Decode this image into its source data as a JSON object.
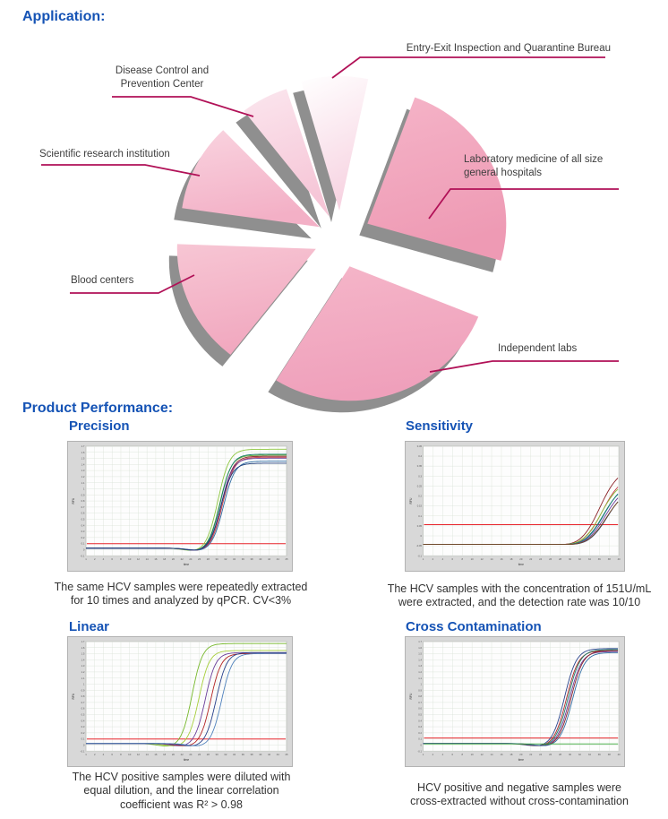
{
  "page": {
    "application_heading": "Application:",
    "performance_heading": "Product Performance:"
  },
  "colors": {
    "heading_blue": "#1553b5",
    "leader_crimson": "#b11157",
    "pie_pink": "#f0a3bd",
    "pie_side_gray": "#8f8f8f",
    "threshold_red": "#e8262d",
    "chart_frame_gray": "#d8d8d8",
    "grid_green_gray": "#d9e2d6",
    "label_text": "#3d3d3d"
  },
  "chart_data": [
    {
      "type": "pie",
      "name": "application-sectors-pie",
      "legend_position": "callout-labels",
      "segments": [
        {
          "label": "Entry-Exit Inspection and Quarantine Bureau",
          "value": 8
        },
        {
          "label": "Laboratory medicine of all size general hospitals",
          "value": 26
        },
        {
          "label": "Independent labs",
          "value": 26
        },
        {
          "label": "Blood centers",
          "value": 14
        },
        {
          "label": "Scientific research institution",
          "value": 15
        },
        {
          "label": "Disease Control and Prevention Center",
          "value": 11
        }
      ]
    },
    {
      "type": "line",
      "title": "Precision",
      "xlabel": "time",
      "ylabel": "RFU",
      "x_range": [
        1,
        45
      ],
      "k": 1.25,
      "threshold": 0.06,
      "x_ticks": [
        "1",
        "2",
        "4",
        "6",
        "8",
        "10",
        "12",
        "14",
        "16",
        "18",
        "20",
        "22",
        "24",
        "26",
        "28",
        "30",
        "32",
        "34",
        "36",
        "38",
        "40",
        "42",
        "44",
        "45"
      ],
      "y_ticks": [
        "1.7",
        "1.6",
        "1.5",
        "1.4",
        "1.3",
        "1.2",
        "1.1",
        "1",
        "0.9",
        "0.8",
        "0.7",
        "0.6",
        "0.5",
        "0.4",
        "0.3",
        "0.2",
        "0.1",
        "0",
        "-0.1"
      ],
      "series": [
        {
          "color": "#8dc63f",
          "ct": 30.0,
          "amp": 0.99
        },
        {
          "color": "#5aa02c",
          "ct": 30.4,
          "amp": 0.93
        },
        {
          "color": "#17806d",
          "ct": 30.5,
          "amp": 0.94
        },
        {
          "color": "#8a1f24",
          "ct": 30.8,
          "amp": 0.92
        },
        {
          "color": "#c43a43",
          "ct": 31.0,
          "amp": 0.91
        },
        {
          "color": "#6a3d9a",
          "ct": 30.7,
          "amp": 0.9
        },
        {
          "color": "#2e6da4",
          "ct": 31.2,
          "amp": 0.87
        },
        {
          "color": "#1f3d7a",
          "ct": 30.6,
          "amp": 0.85
        }
      ],
      "caption_l1": "The same HCV samples were repeatedly extracted",
      "caption_l2": "for 10 times and analyzed by qPCR. CV<3%"
    },
    {
      "type": "line",
      "title": "Sensitivity",
      "xlabel": "time",
      "ylabel": "RFU",
      "x_range": [
        1,
        40
      ],
      "k": 1.9,
      "threshold": 0.22,
      "x_ticks": [
        "1",
        "2",
        "4",
        "6",
        "8",
        "10",
        "12",
        "14",
        "16",
        "18",
        "20",
        "22",
        "24",
        "26",
        "28",
        "30",
        "32",
        "34",
        "36",
        "38",
        "40"
      ],
      "y_ticks": [
        "0.45",
        "0.4",
        "0.35",
        "0.3",
        "0.25",
        "0.2",
        "0.15",
        "0.1",
        "0.05",
        "0",
        "-0.05",
        "-0.1"
      ],
      "series": [
        {
          "color": "#8a1f24",
          "ct": 36.3,
          "amp": 0.8
        },
        {
          "color": "#c43a43",
          "ct": 36.8,
          "amp": 0.72
        },
        {
          "color": "#8dc63f",
          "ct": 36.6,
          "amp": 0.68
        },
        {
          "color": "#2e6da4",
          "ct": 37.2,
          "amp": 0.66
        },
        {
          "color": "#17806d",
          "ct": 37.0,
          "amp": 0.64
        },
        {
          "color": "#6a3d9a",
          "ct": 37.4,
          "amp": 0.62
        },
        {
          "color": "#1f3d7a",
          "ct": 37.8,
          "amp": 0.6
        },
        {
          "color": "#7a4b20",
          "ct": 37.6,
          "amp": 0.58
        }
      ],
      "caption_l1": "The HCV samples with the concentration of 151U/mL",
      "caption_l2": "were extracted, and the detection rate was 10/10"
    },
    {
      "type": "line",
      "title": "Linear",
      "xlabel": "time",
      "ylabel": "RFU",
      "x_range": [
        1,
        45
      ],
      "k": 1.15,
      "threshold": 0.06,
      "x_ticks": [
        "1",
        "2",
        "4",
        "6",
        "8",
        "10",
        "12",
        "14",
        "16",
        "18",
        "20",
        "22",
        "24",
        "26",
        "28",
        "30",
        "32",
        "34",
        "36",
        "38",
        "40",
        "42",
        "44",
        "45"
      ],
      "y_ticks": [
        "1.7",
        "1.6",
        "1.5",
        "1.4",
        "1.3",
        "1.2",
        "1.1",
        "1",
        "0.9",
        "0.8",
        "0.7",
        "0.6",
        "0.5",
        "0.4",
        "0.3",
        "0.2",
        "0.1",
        "0",
        "-0.1"
      ],
      "series": [
        {
          "color": "#76b82a",
          "ct": 24.3,
          "amp": 1.0
        },
        {
          "color": "#a6ce39",
          "ct": 25.8,
          "amp": 0.93
        },
        {
          "color": "#6a3d9a",
          "ct": 27.2,
          "amp": 0.91
        },
        {
          "color": "#b22222",
          "ct": 28.4,
          "amp": 0.9
        },
        {
          "color": "#27408b",
          "ct": 29.6,
          "amp": 0.91
        },
        {
          "color": "#4f81bd",
          "ct": 30.8,
          "amp": 0.9
        }
      ],
      "caption_l1": "The HCV positive samples were diluted with",
      "caption_l2": "equal dilution, and the linear correlation",
      "caption_l3": "coefficient was R² > 0.98"
    },
    {
      "type": "line",
      "title": "Cross Contamination",
      "xlabel": "time",
      "ylabel": "RFU",
      "x_range": [
        1,
        40
      ],
      "k": 1.2,
      "threshold": 0.07,
      "x_ticks": [
        "1",
        "2",
        "4",
        "6",
        "8",
        "10",
        "12",
        "14",
        "16",
        "18",
        "20",
        "22",
        "24",
        "26",
        "28",
        "30",
        "32",
        "34",
        "36",
        "38",
        "40"
      ],
      "y_ticks": [
        "1.7",
        "1.6",
        "1.5",
        "1.4",
        "1.3",
        "1.2",
        "1.1",
        "1",
        "0.9",
        "0.8",
        "0.7",
        "0.6",
        "0.5",
        "0.4",
        "0.3",
        "0.2",
        "0.1",
        "0",
        "-0.1"
      ],
      "series": [
        {
          "color": "#27408b",
          "ct": 29.2,
          "amp": 0.95
        },
        {
          "color": "#b22222",
          "ct": 29.6,
          "amp": 0.93
        },
        {
          "color": "#17806d",
          "ct": 29.9,
          "amp": 0.94
        },
        {
          "color": "#6a3d9a",
          "ct": 30.2,
          "amp": 0.92
        },
        {
          "color": "#8a1f24",
          "ct": 30.5,
          "amp": 0.93
        },
        {
          "color": "#2e6da4",
          "ct": 30.8,
          "amp": 0.91
        },
        {
          "color": "#3aa93a",
          "flat": true,
          "amp": 0
        }
      ],
      "caption_l1": "HCV positive and negative samples were",
      "caption_l2": "cross-extracted without cross-contamination"
    }
  ]
}
